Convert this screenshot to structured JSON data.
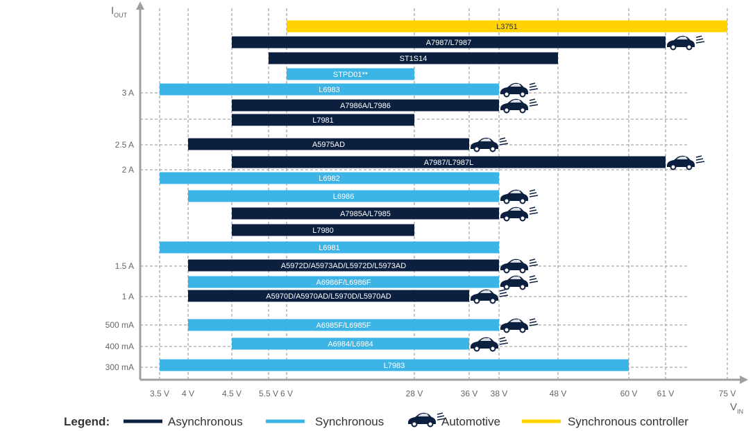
{
  "chart_data": {
    "type": "bar",
    "orientation": "horizontal-range",
    "xlabel": {
      "main": "V",
      "sub": "IN"
    },
    "ylabel": {
      "main": "I",
      "sub": "OUT"
    },
    "x_ticks": [
      {
        "v": 3.5,
        "label": "3.5 V"
      },
      {
        "v": 4,
        "label": "4 V"
      },
      {
        "v": 4.5,
        "label": "4.5 V"
      },
      {
        "v": 5.5,
        "label": "5.5 V"
      },
      {
        "v": 6,
        "label": "6 V"
      },
      {
        "v": 28,
        "label": "28 V"
      },
      {
        "v": 36,
        "label": "36 V"
      },
      {
        "v": 38,
        "label": "38 V"
      },
      {
        "v": 48,
        "label": "48 V"
      },
      {
        "v": 60,
        "label": "60 V"
      },
      {
        "v": 61,
        "label": "61 V"
      },
      {
        "v": 75,
        "label": "75 V"
      }
    ],
    "y_ticks": [
      "3 A",
      "2.5 A",
      "2 A",
      "1.5 A",
      "1 A",
      "500 mA",
      "400 mA",
      "300 mA"
    ],
    "bars": [
      {
        "name": "L3751",
        "vin_min": 6,
        "vin_max": 75,
        "type": "Synchronous controller",
        "automotive": false
      },
      {
        "name": "A7987/L7987",
        "vin_min": 4.5,
        "vin_max": 61,
        "type": "Asynchronous",
        "automotive": true
      },
      {
        "name": "ST1S14",
        "vin_min": 5.5,
        "vin_max": 48,
        "type": "Asynchronous",
        "automotive": false
      },
      {
        "name": "STPD01**",
        "vin_min": 6,
        "vin_max": 28,
        "type": "Synchronous",
        "automotive": false
      },
      {
        "name": "L6983",
        "vin_min": 3.5,
        "vin_max": 38,
        "type": "Synchronous",
        "automotive": true,
        "iout": "3 A"
      },
      {
        "name": "A7986A/L7986",
        "vin_min": 4.5,
        "vin_max": 38,
        "type": "Asynchronous",
        "automotive": true
      },
      {
        "name": "L7981",
        "vin_min": 4.5,
        "vin_max": 28,
        "type": "Asynchronous",
        "automotive": false
      },
      {
        "name": "A5975AD",
        "vin_min": 4,
        "vin_max": 36,
        "type": "Asynchronous",
        "automotive": true,
        "iout": "2.5 A"
      },
      {
        "name": "A7987/L7987L",
        "vin_min": 4.5,
        "vin_max": 61,
        "type": "Asynchronous",
        "automotive": true,
        "iout": "2 A"
      },
      {
        "name": "L6982",
        "vin_min": 3.5,
        "vin_max": 38,
        "type": "Synchronous",
        "automotive": false
      },
      {
        "name": "L6986",
        "vin_min": 4,
        "vin_max": 38,
        "type": "Synchronous",
        "automotive": true
      },
      {
        "name": "A7985A/L7985",
        "vin_min": 4.5,
        "vin_max": 38,
        "type": "Asynchronous",
        "automotive": true
      },
      {
        "name": "L7980",
        "vin_min": 4.5,
        "vin_max": 28,
        "type": "Asynchronous",
        "automotive": false
      },
      {
        "name": "L6981",
        "vin_min": 3.5,
        "vin_max": 38,
        "type": "Synchronous",
        "automotive": false
      },
      {
        "name": "A5972D/A5973AD/L5972D/L5973AD",
        "vin_min": 4,
        "vin_max": 38,
        "type": "Asynchronous",
        "automotive": true,
        "iout": "1.5 A"
      },
      {
        "name": "A6986F/L6986F",
        "vin_min": 4,
        "vin_max": 38,
        "type": "Synchronous",
        "automotive": true
      },
      {
        "name": "A5970D/A5970AD/L5970D/L5970AD",
        "vin_min": 4,
        "vin_max": 36,
        "type": "Asynchronous",
        "automotive": true,
        "iout": "1 A"
      },
      {
        "name": "A6985F/L6985F",
        "vin_min": 4,
        "vin_max": 38,
        "type": "Synchronous",
        "automotive": true,
        "iout": "500 mA"
      },
      {
        "name": "A6984/L6984",
        "vin_min": 4.5,
        "vin_max": 36,
        "type": "Synchronous",
        "automotive": true,
        "iout": "400 mA"
      },
      {
        "name": "L7983",
        "vin_min": 3.5,
        "vin_max": 60,
        "type": "Synchronous",
        "automotive": false,
        "iout": "300 mA"
      }
    ],
    "colors": {
      "Asynchronous": "#0b1f3f",
      "Synchronous": "#3cb4e5",
      "Synchronous controller": "#ffd200",
      "axis": "#a0a0a0",
      "grid": "#a8a8a8"
    },
    "legend": {
      "title": "Legend:",
      "items": [
        {
          "label": "Asynchronous",
          "kind": "line",
          "color": "#0b1f3f"
        },
        {
          "label": "Synchronous",
          "kind": "line",
          "color": "#3cb4e5"
        },
        {
          "label": "Automotive",
          "kind": "car",
          "color": "#0b1f3f"
        },
        {
          "label": "Synchronous controller",
          "kind": "line",
          "color": "#ffd200"
        }
      ]
    }
  }
}
